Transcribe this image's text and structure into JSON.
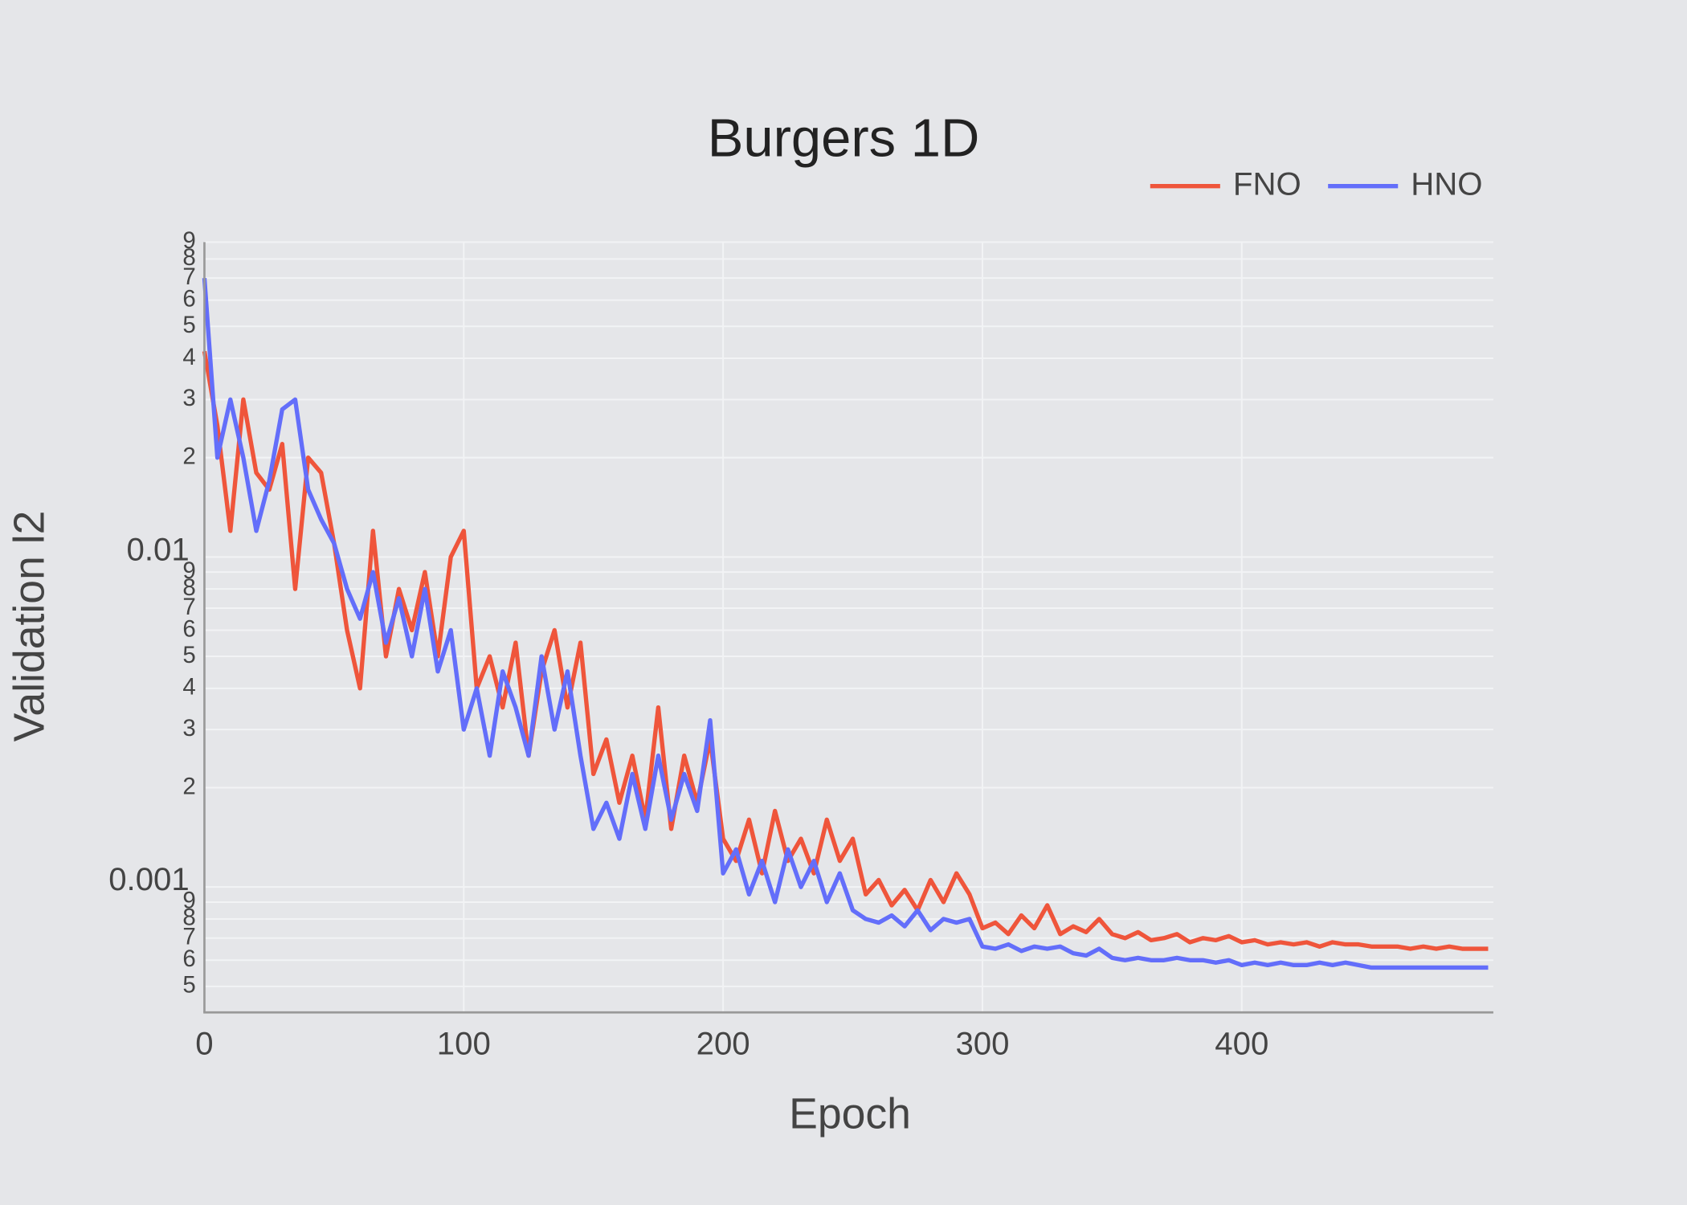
{
  "chart_data": {
    "type": "line",
    "title": "Burgers 1D",
    "x_label": "Epoch",
    "y_label": "Validation l2",
    "x": [
      0,
      5,
      10,
      15,
      20,
      25,
      30,
      35,
      40,
      45,
      50,
      55,
      60,
      65,
      70,
      75,
      80,
      85,
      90,
      95,
      100,
      105,
      110,
      115,
      120,
      125,
      130,
      135,
      140,
      145,
      150,
      155,
      160,
      165,
      170,
      175,
      180,
      185,
      190,
      195,
      200,
      205,
      210,
      215,
      220,
      225,
      230,
      235,
      240,
      245,
      250,
      255,
      260,
      265,
      270,
      275,
      280,
      285,
      290,
      295,
      300,
      305,
      310,
      315,
      320,
      325,
      330,
      335,
      340,
      345,
      350,
      355,
      360,
      365,
      370,
      375,
      380,
      385,
      390,
      395,
      400,
      405,
      410,
      415,
      420,
      425,
      430,
      435,
      440,
      445,
      450,
      455,
      460,
      465,
      470,
      475,
      480,
      485,
      490,
      495
    ],
    "series": [
      {
        "name": "FNO",
        "color": "#ef553b",
        "values": [
          0.042,
          0.025,
          0.012,
          0.03,
          0.018,
          0.016,
          0.022,
          0.008,
          0.02,
          0.018,
          0.011,
          0.006,
          0.004,
          0.012,
          0.005,
          0.008,
          0.006,
          0.009,
          0.005,
          0.01,
          0.012,
          0.004,
          0.005,
          0.0035,
          0.0055,
          0.0025,
          0.0045,
          0.006,
          0.0035,
          0.0055,
          0.0022,
          0.0028,
          0.0018,
          0.0025,
          0.0016,
          0.0035,
          0.0015,
          0.0025,
          0.0018,
          0.0028,
          0.0014,
          0.0012,
          0.0016,
          0.0011,
          0.0017,
          0.0012,
          0.0014,
          0.0011,
          0.0016,
          0.0012,
          0.0014,
          0.00095,
          0.00105,
          0.00088,
          0.00098,
          0.00085,
          0.00105,
          0.0009,
          0.0011,
          0.00095,
          0.00075,
          0.00078,
          0.00072,
          0.00082,
          0.00075,
          0.00088,
          0.00072,
          0.00076,
          0.00073,
          0.0008,
          0.00072,
          0.0007,
          0.00073,
          0.00069,
          0.0007,
          0.00072,
          0.00068,
          0.0007,
          0.00069,
          0.00071,
          0.00068,
          0.00069,
          0.00067,
          0.00068,
          0.00067,
          0.00068,
          0.00066,
          0.00068,
          0.00067,
          0.00067,
          0.00066,
          0.00066,
          0.00066,
          0.00065,
          0.00066,
          0.00065,
          0.00066,
          0.00065,
          0.00065,
          0.00065
        ]
      },
      {
        "name": "HNO",
        "color": "#636efa",
        "values": [
          0.07,
          0.02,
          0.03,
          0.02,
          0.012,
          0.017,
          0.028,
          0.03,
          0.016,
          0.013,
          0.011,
          0.008,
          0.0065,
          0.009,
          0.0055,
          0.0075,
          0.005,
          0.008,
          0.0045,
          0.006,
          0.003,
          0.004,
          0.0025,
          0.0045,
          0.0035,
          0.0025,
          0.005,
          0.003,
          0.0045,
          0.0025,
          0.0015,
          0.0018,
          0.0014,
          0.0022,
          0.0015,
          0.0025,
          0.0016,
          0.0022,
          0.0017,
          0.0032,
          0.0011,
          0.0013,
          0.00095,
          0.0012,
          0.0009,
          0.0013,
          0.001,
          0.0012,
          0.0009,
          0.0011,
          0.00085,
          0.0008,
          0.00078,
          0.00082,
          0.00076,
          0.00085,
          0.00074,
          0.0008,
          0.00078,
          0.0008,
          0.00066,
          0.00065,
          0.00067,
          0.00064,
          0.00066,
          0.00065,
          0.00066,
          0.00063,
          0.00062,
          0.00065,
          0.00061,
          0.0006,
          0.00061,
          0.0006,
          0.0006,
          0.00061,
          0.0006,
          0.0006,
          0.00059,
          0.0006,
          0.00058,
          0.00059,
          0.00058,
          0.00059,
          0.00058,
          0.00058,
          0.00059,
          0.00058,
          0.00059,
          0.00058,
          0.00057,
          0.00057,
          0.00057,
          0.00057,
          0.00057,
          0.00057,
          0.00057,
          0.00057,
          0.00057,
          0.00057
        ]
      }
    ],
    "xlim": [
      0,
      497
    ],
    "xticks": [
      0,
      100,
      200,
      300,
      400
    ],
    "ylim": [
      0.00042,
      0.09
    ],
    "log_y": true,
    "yticks": [
      {
        "value": 0.0005,
        "label": "5"
      },
      {
        "value": 0.0006,
        "label": "6"
      },
      {
        "value": 0.0007,
        "label": "7"
      },
      {
        "value": 0.0008,
        "label": "8"
      },
      {
        "value": 0.0009,
        "label": "9"
      },
      0.001,
      {
        "value": 0.002,
        "label": "2"
      },
      {
        "value": 0.003,
        "label": "3"
      },
      {
        "value": 0.004,
        "label": "4"
      },
      {
        "value": 0.005,
        "label": "5"
      },
      {
        "value": 0.006,
        "label": "6"
      },
      {
        "value": 0.007,
        "label": "7"
      },
      {
        "value": 0.008,
        "label": "8"
      },
      {
        "value": 0.009,
        "label": "9"
      },
      0.01,
      {
        "value": 0.02,
        "label": "2"
      },
      {
        "value": 0.03,
        "label": "3"
      },
      {
        "value": 0.04,
        "label": "4"
      },
      {
        "value": 0.05,
        "label": "5"
      },
      {
        "value": 0.06,
        "label": "6"
      },
      {
        "value": 0.07,
        "label": "7"
      },
      {
        "value": 0.08,
        "label": "8"
      },
      {
        "value": 0.09,
        "label": "9"
      }
    ],
    "grid": true,
    "legend": "top-right"
  }
}
